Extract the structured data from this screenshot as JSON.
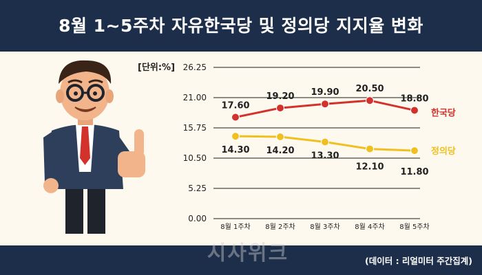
{
  "title": "8월 1~5주차 자유한국당 및 정의당 지지율 변화",
  "unit_label": "[단위:%]",
  "source": "(데이터 : 리얼미터 주간집계)",
  "watermark": "시사위크",
  "colors": {
    "header_bg": "#1d2e4b",
    "page_bg": "#fdf9ef",
    "korea_party": "#d3322c",
    "justice_party": "#f0c020"
  },
  "chart_data": {
    "type": "line",
    "title": "8월 1~5주차 자유한국당 및 정의당 지지율 변화",
    "ylabel": "[단위:%]",
    "xlabel": "",
    "categories": [
      "8월 1주차",
      "8월 2주차",
      "8월 3주차",
      "8월 4주차",
      "8월 5주차"
    ],
    "yticks": [
      "26.25",
      "21.00",
      "15.75",
      "10.50",
      "5.25",
      "0.00"
    ],
    "ylim": [
      0,
      26.25
    ],
    "grid": true,
    "legend": "right, inline at line ends",
    "series": [
      {
        "name": "한국당",
        "values": [
          17.6,
          19.2,
          19.9,
          20.5,
          18.8
        ],
        "labels": [
          "17.60",
          "19.20",
          "19.90",
          "20.50",
          "18.80"
        ],
        "color": "#d3322c"
      },
      {
        "name": "정의당",
        "values": [
          14.3,
          14.2,
          13.3,
          12.1,
          11.8
        ],
        "labels": [
          "14.30",
          "14.20",
          "13.30",
          "12.10",
          "11.80"
        ],
        "color": "#f0c020"
      }
    ]
  }
}
